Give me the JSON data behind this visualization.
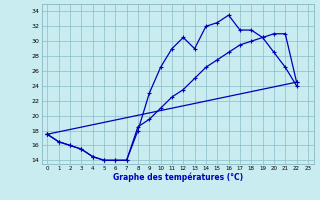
{
  "xlabel": "Graphe des températures (°C)",
  "bg_color": "#c8ecf0",
  "grid_color": "#aad4dc",
  "line_color": "#0000bb",
  "xlim": [
    -0.5,
    23.5
  ],
  "ylim": [
    13.5,
    35
  ],
  "xticks": [
    0,
    1,
    2,
    3,
    4,
    5,
    6,
    7,
    8,
    9,
    10,
    11,
    12,
    13,
    14,
    15,
    16,
    17,
    18,
    19,
    20,
    21,
    22,
    23
  ],
  "yticks": [
    14,
    16,
    18,
    20,
    22,
    24,
    26,
    28,
    30,
    32,
    34
  ],
  "line1_x": [
    0,
    1,
    2,
    3,
    4,
    5,
    6,
    7,
    8,
    9,
    10,
    11,
    12,
    13,
    14,
    15,
    16,
    17,
    18,
    19,
    20,
    21,
    22
  ],
  "line1_y": [
    17.5,
    16.5,
    16.0,
    15.5,
    14.5,
    14.0,
    14.0,
    14.0,
    18.0,
    23.0,
    26.5,
    29.0,
    30.5,
    29.0,
    32.0,
    32.5,
    33.5,
    31.5,
    31.5,
    30.5,
    28.5,
    26.5,
    24.0
  ],
  "line2_x": [
    0,
    1,
    2,
    3,
    4,
    5,
    6,
    7,
    8,
    9,
    10,
    11,
    12,
    13,
    14,
    15,
    16,
    17,
    18,
    19,
    20,
    21,
    22
  ],
  "line2_y": [
    17.5,
    16.5,
    16.0,
    15.5,
    14.5,
    14.0,
    14.0,
    14.0,
    18.5,
    19.5,
    21.0,
    22.5,
    23.5,
    25.0,
    26.5,
    27.5,
    28.5,
    29.5,
    30.0,
    30.5,
    31.0,
    31.0,
    24.5
  ],
  "line3_x": [
    0,
    22
  ],
  "line3_y": [
    17.5,
    24.5
  ]
}
